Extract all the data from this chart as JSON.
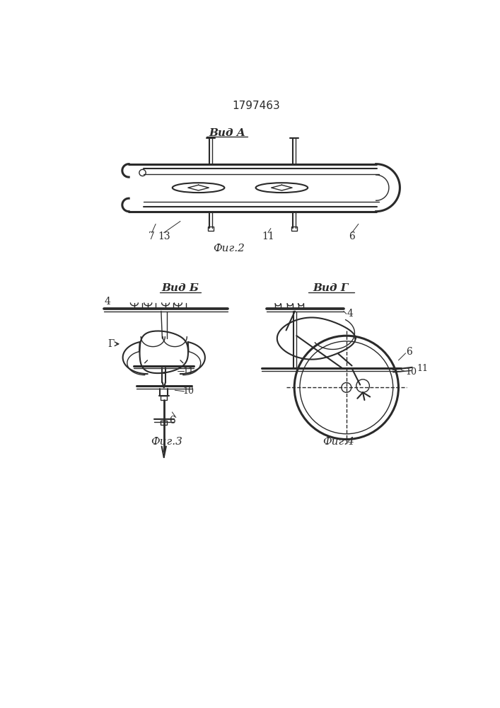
{
  "patent_number": "1797463",
  "bg_color": "#ffffff",
  "line_color": "#2a2a2a",
  "fig2_title": "Вид A",
  "fig3_title": "Вид Б",
  "fig4_title": "Вид Г",
  "fig2_caption": "Фиг.2",
  "fig3_caption": "Фиг.3",
  "fig4_caption": "Фиг.4"
}
